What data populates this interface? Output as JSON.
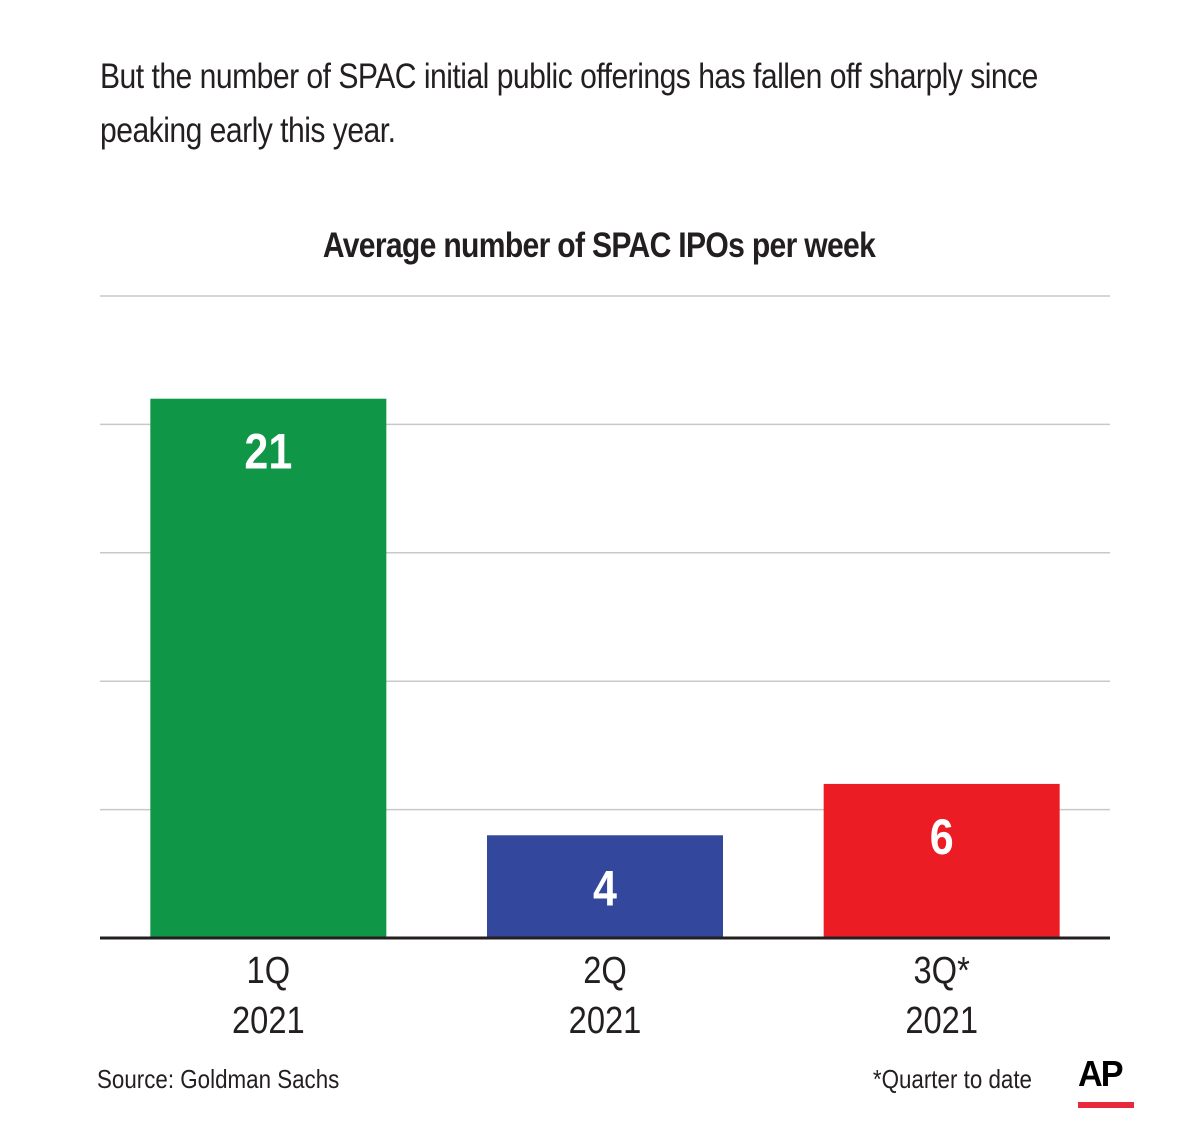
{
  "headline": "But the number of SPAC initial public offerings has fallen off sharply since peaking early this year.",
  "footer": {
    "source": "Source: Goldman Sachs",
    "note": "*Quarter to date",
    "logo": "AP"
  },
  "colors": {
    "bar_1q": "#0f9647",
    "bar_2q": "#33479c",
    "bar_3q": "#ec1c24",
    "gridline": "#c8c8c8",
    "baseline": "#231f20",
    "logo_accent": "#e8283b"
  },
  "chart_data": {
    "type": "bar",
    "title": "Average number of SPAC IPOs per week",
    "categories": [
      [
        "1Q",
        "2021"
      ],
      [
        "2Q",
        "2021"
      ],
      [
        "3Q*",
        "2021"
      ]
    ],
    "values": [
      21,
      4,
      6
    ],
    "value_labels": [
      "21",
      "4",
      "6"
    ],
    "ylim": [
      0,
      25
    ],
    "grid": true,
    "y_tick_labels_shown": false
  }
}
